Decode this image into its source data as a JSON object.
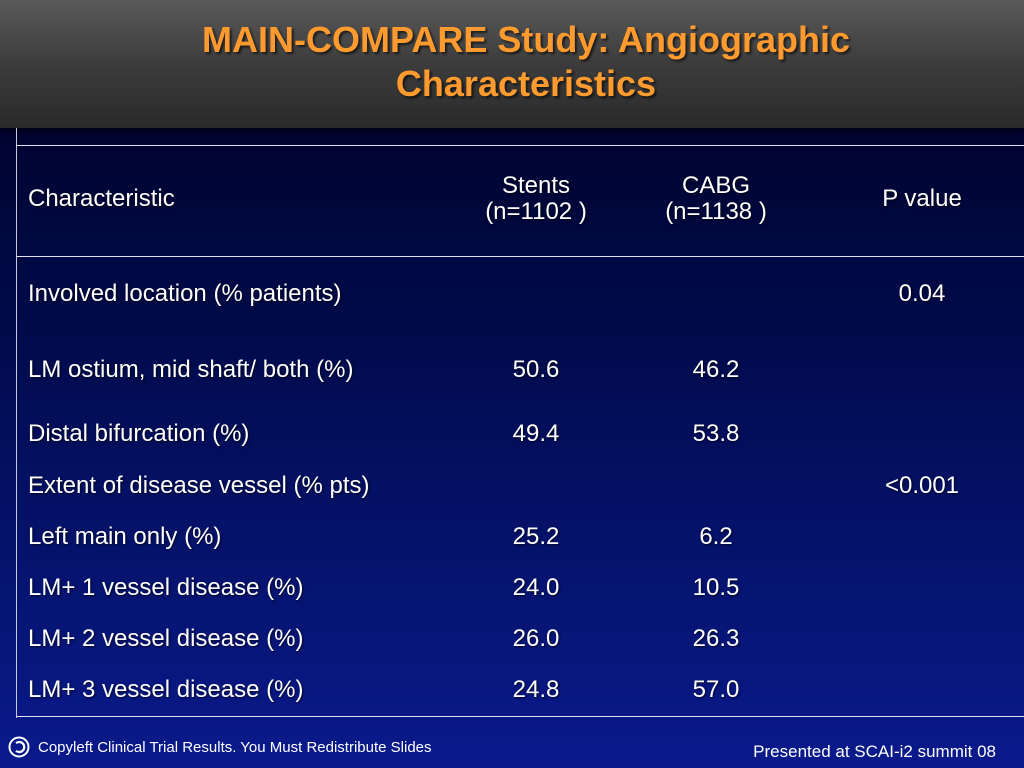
{
  "slide": {
    "title_line1": "MAIN-COMPARE Study: Angiographic",
    "title_line2": "Characteristics",
    "title_color": "#ff9a2e",
    "background_color": "#0a1a8c"
  },
  "table": {
    "headers": {
      "characteristic": "Characteristic",
      "stents_line1": "Stents",
      "stents_line2": "(n=1102 )",
      "cabg_line1": "CABG",
      "cabg_line2": "(n=1138 )",
      "p_value": "P value"
    },
    "rows": [
      {
        "label": "Involved location (% patients)",
        "stents": "",
        "cabg": "",
        "p": "0.04"
      },
      {
        "label": "LM ostium, mid shaft/ both (%)",
        "stents": "50.6",
        "cabg": "46.2",
        "p": ""
      },
      {
        "label": "Distal bifurcation (%)",
        "stents": "49.4",
        "cabg": "53.8",
        "p": ""
      },
      {
        "label": "Extent of disease vessel (% pts)",
        "stents": "",
        "cabg": "",
        "p": "<0.001"
      },
      {
        "label": "Left main only (%)",
        "stents": "25.2",
        "cabg": "6.2",
        "p": ""
      },
      {
        "label": "LM+ 1 vessel disease (%)",
        "stents": "24.0",
        "cabg": "10.5",
        "p": ""
      },
      {
        "label": "LM+ 2 vessel disease (%)",
        "stents": "26.0",
        "cabg": "26.3",
        "p": ""
      },
      {
        "label": "LM+ 3 vessel disease (%)",
        "stents": "24.8",
        "cabg": "57.0",
        "p": ""
      }
    ]
  },
  "footer": {
    "copyleft_text": "Copyleft Clinical Trial Results. You Must Redistribute Slides",
    "copyleft_icon": "copyleft-icon",
    "presented_text": "Presented at SCAI-i2 summit 08"
  }
}
